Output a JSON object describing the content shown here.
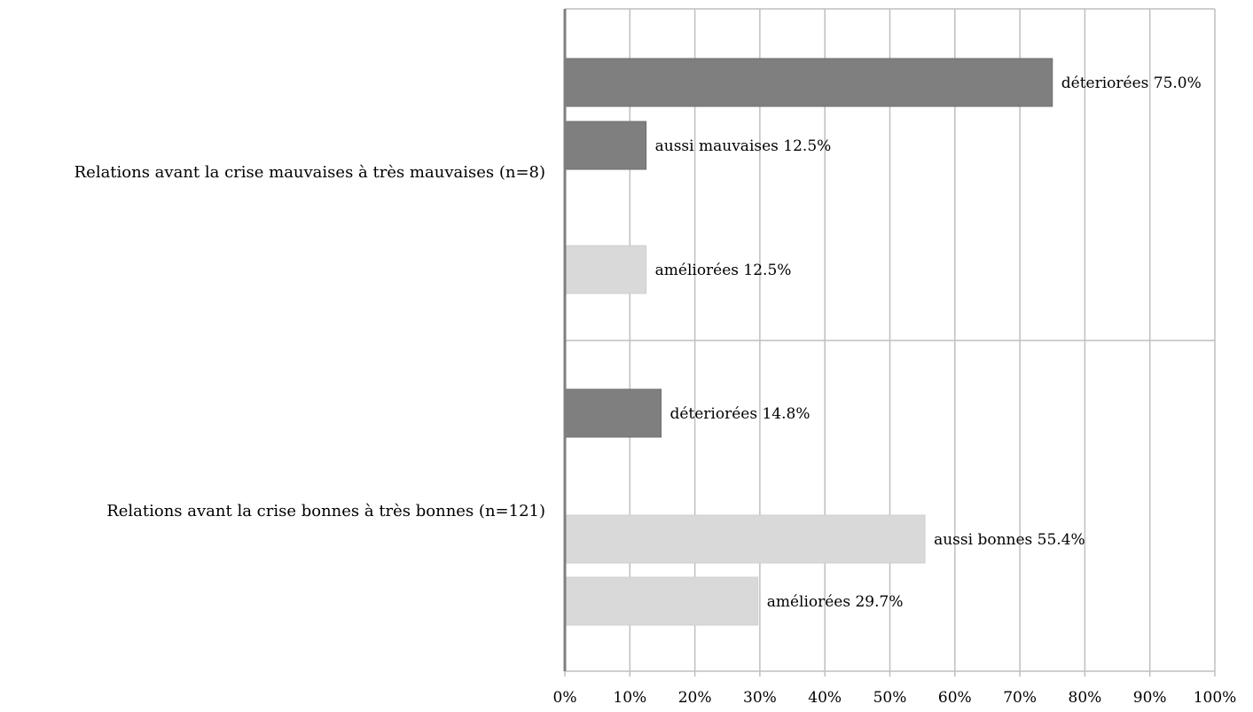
{
  "chart_data": {
    "type": "bar",
    "orientation": "horizontal",
    "title": "",
    "xlabel": "",
    "ylabel": "",
    "xlim": [
      0,
      100
    ],
    "x_ticks": [
      "0%",
      "10%",
      "20%",
      "30%",
      "40%",
      "50%",
      "60%",
      "70%",
      "80%",
      "90%",
      "100%"
    ],
    "grid": true,
    "legend": "none",
    "colors": {
      "dark": "#7f7f7f",
      "light": "#d9d9d9",
      "grid": "#bfbfbf",
      "axis": "#7f7f7f"
    },
    "groups": [
      {
        "label": "Relations avant la crise mauvaises à très mauvaises (n=8)",
        "bars": [
          {
            "label": "déteriorées 75.0%",
            "value": 75.0,
            "color": "dark"
          },
          {
            "label": "aussi mauvaises 12.5%",
            "value": 12.5,
            "color": "dark"
          },
          {
            "label": "améliorées 12.5%",
            "value": 12.5,
            "color": "light"
          }
        ]
      },
      {
        "label": "Relations avant la crise bonnes à très bonnes (n=121)",
        "bars": [
          {
            "label": "déteriorées 14.8%",
            "value": 14.8,
            "color": "dark"
          },
          {
            "label": "aussi bonnes 55.4%",
            "value": 55.4,
            "color": "light"
          },
          {
            "label": "améliorées 29.7%",
            "value": 29.7,
            "color": "light"
          }
        ]
      }
    ]
  }
}
